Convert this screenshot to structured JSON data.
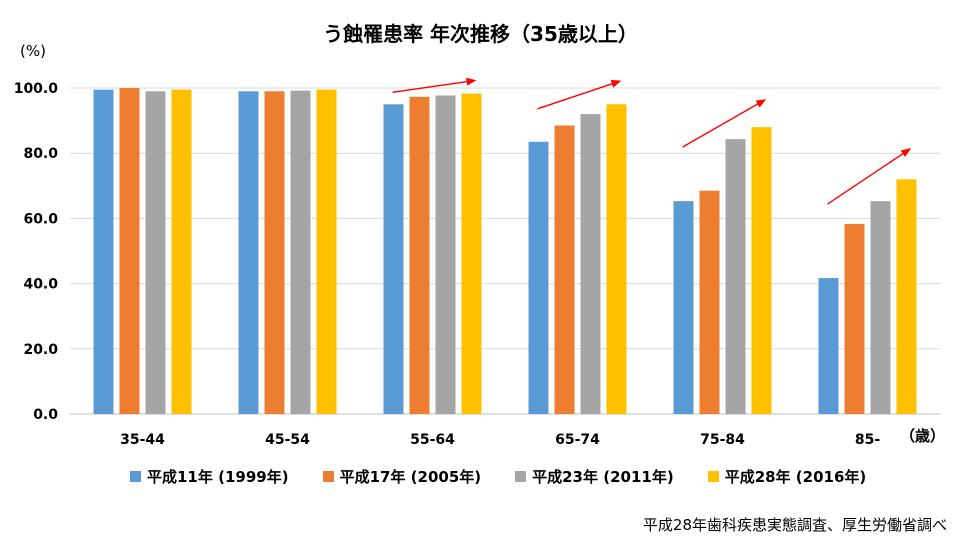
{
  "chart_data": {
    "type": "bar",
    "title": "う蝕罹患率 年次推移（35歳以上）",
    "ylabel": "(%)",
    "xlabel": "（歳）",
    "ylim": [
      0,
      100
    ],
    "yticks": [
      "0.0",
      "20.0",
      "40.0",
      "60.0",
      "80.0",
      "100.0"
    ],
    "categories": [
      "35-44",
      "45-54",
      "55-64",
      "65-74",
      "75-84",
      "85-"
    ],
    "series": [
      {
        "name": "平成11年 (1999年)",
        "color": "#5B9BD5",
        "values": [
          99.5,
          99.0,
          95.0,
          83.5,
          65.3,
          41.7
        ]
      },
      {
        "name": "平成17年 (2005年)",
        "color": "#ED7D31",
        "values": [
          100.0,
          99.0,
          97.3,
          88.5,
          68.5,
          58.3
        ]
      },
      {
        "name": "平成23年 (2011年)",
        "color": "#A5A5A5",
        "values": [
          99.0,
          99.2,
          97.7,
          92.0,
          84.3,
          65.3
        ]
      },
      {
        "name": "平成28年 (2016年)",
        "color": "#FFC000",
        "values": [
          99.5,
          99.5,
          98.3,
          95.0,
          88.0,
          72.0
        ]
      }
    ],
    "grid": true,
    "legend_position": "bottom",
    "annotations": "red upward-trend arrows over groups 55-64, 65-74, 75-84, 85-"
  },
  "source_note": "平成28年歯科疾患実態調査、厚生労働省調べ"
}
